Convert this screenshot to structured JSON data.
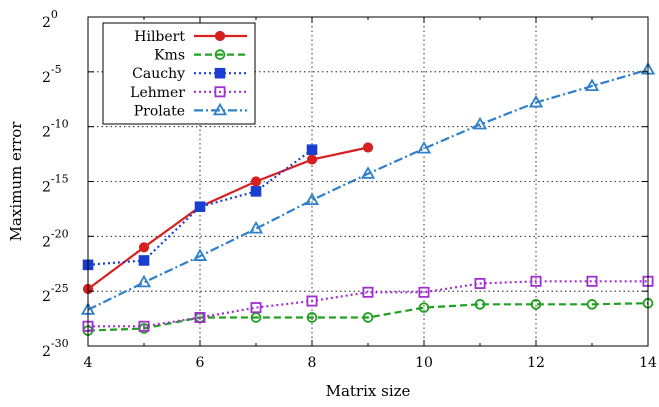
{
  "chart_data": {
    "type": "line",
    "title": "",
    "xlabel": "Matrix size",
    "ylabel": "Maximum error",
    "xlim": [
      4,
      14
    ],
    "ylim_log2": [
      -30,
      0
    ],
    "x_ticks": [
      4,
      6,
      8,
      10,
      12,
      14
    ],
    "y_ticks": [
      {
        "base": "2",
        "exp": "0"
      },
      {
        "base": "2",
        "exp": "-5"
      },
      {
        "base": "2",
        "exp": "-10"
      },
      {
        "base": "2",
        "exp": "-15"
      },
      {
        "base": "2",
        "exp": "-20"
      },
      {
        "base": "2",
        "exp": "-25"
      },
      {
        "base": "2",
        "exp": "-30"
      }
    ],
    "y_scale": "log2",
    "grid": true,
    "legend_position": "top-left",
    "series": [
      {
        "name": "Hilbert",
        "color": "#d62020",
        "marker": "filled-circle",
        "dash": "solid",
        "x": [
          4,
          5,
          6,
          7,
          8,
          9
        ],
        "log2_y": [
          -24.8,
          -21.0,
          -17.3,
          -15.0,
          -13.0,
          -11.9
        ]
      },
      {
        "name": "Kms",
        "color": "#20a020",
        "marker": "open-circle",
        "dash": "dashed",
        "x": [
          4,
          5,
          6,
          7,
          8,
          9,
          10,
          11,
          12,
          13,
          14
        ],
        "log2_y": [
          -28.6,
          -28.4,
          -27.4,
          -27.4,
          -27.4,
          -27.4,
          -26.5,
          -26.2,
          -26.2,
          -26.2,
          -26.1
        ]
      },
      {
        "name": "Cauchy",
        "color": "#1a3fd0",
        "marker": "filled-square",
        "dash": "dotted",
        "x": [
          4,
          5,
          6,
          7,
          8
        ],
        "log2_y": [
          -22.6,
          -22.2,
          -17.3,
          -15.9,
          -12.1
        ]
      },
      {
        "name": "Lehmer",
        "color": "#a030d0",
        "marker": "open-square",
        "dash": "dotted",
        "x": [
          4,
          5,
          6,
          7,
          8,
          9,
          10,
          11,
          12,
          13,
          14
        ],
        "log2_y": [
          -28.2,
          -28.2,
          -27.4,
          -26.5,
          -25.9,
          -25.1,
          -25.1,
          -24.3,
          -24.1,
          -24.1,
          -24.1
        ]
      },
      {
        "name": "Prolate",
        "color": "#2f80c8",
        "marker": "open-triangle",
        "dash": "dashdot",
        "x": [
          4,
          5,
          6,
          7,
          8,
          9,
          10,
          11,
          12,
          13,
          14
        ],
        "log2_y": [
          -26.7,
          -24.2,
          -21.8,
          -19.3,
          -16.7,
          -14.3,
          -12.0,
          -9.8,
          -7.8,
          -6.3,
          -4.8
        ]
      }
    ]
  }
}
